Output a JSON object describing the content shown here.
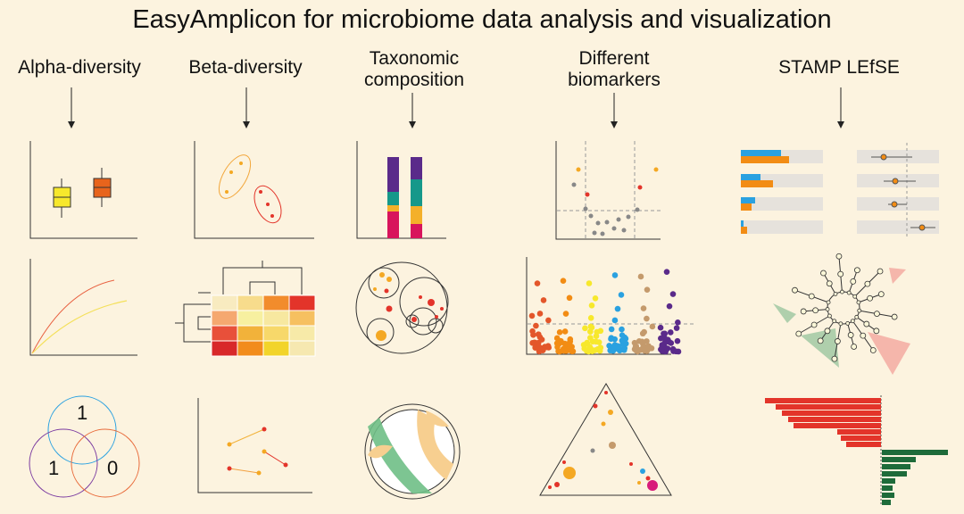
{
  "title": "EasyAmplicon for microbiome data analysis and visualization",
  "columns": [
    {
      "label": "Alpha-diversity"
    },
    {
      "label": "Beta-diversity"
    },
    {
      "label": "Taxonomic composition"
    },
    {
      "label": "Different biomarkers"
    },
    {
      "label": "STAMP LEfSE"
    }
  ],
  "venn": {
    "top": "1",
    "left": "1",
    "right": "0"
  },
  "colors": {
    "red": "#e3342a",
    "orange": "#f28c14",
    "yellow": "#f7e82c",
    "blue": "#2aa1e0",
    "tan": "#c49a6c",
    "purple": "#5a2a8a",
    "green": "#1e6b3a",
    "gray": "#888888"
  }
}
